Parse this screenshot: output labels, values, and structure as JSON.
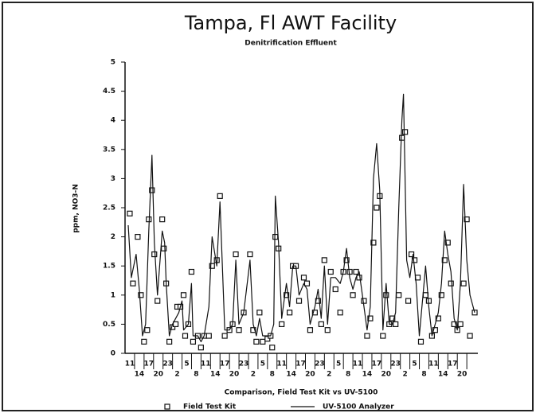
{
  "chart_data": {
    "type": "line",
    "title": "Tampa, Fl AWT Facility",
    "subtitle": "Denitrification Effluent",
    "ylabel": "ppm, NO3-N",
    "xlabel": "Comparison, Field Test Kit vs UV-5100",
    "ylim": [
      0,
      5
    ],
    "yticks": [
      0,
      0.5,
      1,
      1.5,
      2,
      2.5,
      3,
      3.5,
      4,
      4.5,
      5
    ],
    "xlim": [
      -4,
      442
    ],
    "xticks": [
      {
        "value": 2,
        "label": "11"
      },
      {
        "value": 14,
        "label": "14"
      },
      {
        "value": 26,
        "label": "17"
      },
      {
        "value": 38,
        "label": "20"
      },
      {
        "value": 50,
        "label": "23"
      },
      {
        "value": 62,
        "label": "2"
      },
      {
        "value": 74,
        "label": "5"
      },
      {
        "value": 86,
        "label": "8"
      },
      {
        "value": 98,
        "label": "11"
      },
      {
        "value": 110,
        "label": "14"
      },
      {
        "value": 122,
        "label": "17"
      },
      {
        "value": 134,
        "label": "20"
      },
      {
        "value": 146,
        "label": "23"
      },
      {
        "value": 158,
        "label": "2"
      },
      {
        "value": 170,
        "label": "5"
      },
      {
        "value": 182,
        "label": "8"
      },
      {
        "value": 194,
        "label": "11"
      },
      {
        "value": 206,
        "label": "14"
      },
      {
        "value": 218,
        "label": "17"
      },
      {
        "value": 230,
        "label": "20"
      },
      {
        "value": 242,
        "label": "23"
      },
      {
        "value": 254,
        "label": "2"
      },
      {
        "value": 266,
        "label": "5"
      },
      {
        "value": 278,
        "label": "8"
      },
      {
        "value": 290,
        "label": "11"
      },
      {
        "value": 302,
        "label": "14"
      },
      {
        "value": 314,
        "label": "17"
      },
      {
        "value": 326,
        "label": "20"
      },
      {
        "value": 338,
        "label": "23"
      },
      {
        "value": 350,
        "label": "2"
      },
      {
        "value": 362,
        "label": "5"
      },
      {
        "value": 374,
        "label": "8"
      },
      {
        "value": 386,
        "label": "11"
      },
      {
        "value": 398,
        "label": "14"
      },
      {
        "value": 410,
        "label": "17"
      },
      {
        "value": 422,
        "label": "20"
      }
    ],
    "series": [
      {
        "name": "Field Test Kit",
        "color": "#111111",
        "marker": "square",
        "line": false,
        "x": [
          2,
          6,
          12,
          16,
          20,
          24,
          26,
          30,
          33,
          37,
          43,
          45,
          48,
          52,
          56,
          60,
          62,
          66,
          70,
          72,
          76,
          80,
          82,
          88,
          92,
          96,
          102,
          106,
          112,
          116,
          122,
          128,
          132,
          136,
          140,
          146,
          154,
          158,
          162,
          166,
          170,
          176,
          180,
          182,
          186,
          190,
          194,
          200,
          204,
          208,
          212,
          216,
          222,
          226,
          230,
          236,
          240,
          244,
          248,
          252,
          256,
          262,
          268,
          272,
          276,
          280,
          284,
          288,
          292,
          298,
          302,
          306,
          310,
          314,
          318,
          322,
          326,
          330,
          334,
          338,
          342,
          346,
          350,
          354,
          358,
          362,
          366,
          370,
          376,
          380,
          384,
          388,
          392,
          396,
          400,
          404,
          408,
          412,
          416,
          420,
          424,
          428,
          432,
          438
        ],
        "values": [
          2.4,
          1.2,
          2.0,
          1.0,
          0.2,
          0.4,
          2.3,
          2.8,
          1.7,
          0.9,
          2.3,
          1.8,
          1.2,
          0.2,
          0.45,
          0.5,
          0.8,
          0.8,
          1.0,
          0.3,
          0.5,
          1.4,
          0.2,
          0.3,
          0.1,
          0.3,
          0.3,
          1.5,
          1.6,
          2.7,
          0.3,
          0.4,
          0.5,
          1.7,
          0.4,
          0.7,
          1.7,
          0.4,
          0.2,
          0.7,
          0.2,
          0.25,
          0.3,
          0.1,
          2.0,
          1.8,
          0.5,
          1.0,
          0.7,
          1.5,
          1.5,
          0.9,
          1.3,
          1.2,
          0.4,
          0.7,
          0.9,
          0.5,
          1.6,
          0.4,
          1.4,
          1.1,
          0.7,
          1.4,
          1.6,
          1.4,
          1.0,
          1.4,
          1.3,
          0.9,
          0.3,
          0.6,
          1.9,
          2.5,
          2.7,
          0.3,
          1.0,
          0.5,
          0.6,
          0.5,
          1.0,
          3.7,
          3.8,
          0.9,
          1.7,
          1.6,
          1.3,
          0.2,
          1.0,
          0.9,
          0.3,
          0.4,
          0.6,
          1.0,
          1.6,
          1.9,
          1.2,
          0.5,
          0.4,
          0.5,
          1.2,
          2.3,
          0.3,
          0.7
        ]
      },
      {
        "name": "UV-5100 Analyzer",
        "color": "#111111",
        "marker": "none",
        "line": true,
        "x": [
          0,
          4,
          10,
          14,
          18,
          22,
          26,
          30,
          33,
          37,
          43,
          46,
          48,
          52,
          56,
          60,
          64,
          68,
          70,
          76,
          80,
          82,
          88,
          92,
          96,
          102,
          106,
          112,
          116,
          122,
          128,
          132,
          136,
          140,
          146,
          154,
          158,
          162,
          166,
          170,
          176,
          180,
          184,
          186,
          190,
          194,
          200,
          204,
          208,
          212,
          216,
          222,
          226,
          230,
          236,
          240,
          244,
          248,
          252,
          256,
          262,
          268,
          272,
          276,
          280,
          284,
          288,
          292,
          298,
          302,
          306,
          310,
          314,
          318,
          322,
          326,
          330,
          334,
          338,
          342,
          346,
          348,
          352,
          356,
          360,
          364,
          368,
          376,
          380,
          384,
          388,
          392,
          396,
          400,
          404,
          408,
          412,
          416,
          420,
          424,
          428,
          432,
          438
        ],
        "values": [
          2.2,
          1.3,
          1.7,
          1.1,
          0.3,
          0.5,
          2.1,
          3.4,
          1.9,
          1.0,
          2.1,
          1.9,
          1.2,
          0.3,
          0.5,
          0.6,
          0.7,
          0.9,
          0.4,
          0.5,
          1.2,
          0.3,
          0.3,
          0.2,
          0.3,
          0.8,
          2.0,
          1.5,
          2.6,
          0.4,
          0.4,
          0.5,
          1.6,
          0.5,
          0.7,
          1.6,
          0.5,
          0.3,
          0.6,
          0.3,
          0.3,
          0.3,
          0.5,
          2.7,
          1.9,
          0.6,
          1.2,
          0.8,
          1.5,
          1.5,
          1.0,
          1.2,
          1.1,
          0.5,
          0.8,
          1.1,
          0.6,
          1.5,
          0.5,
          1.3,
          1.3,
          1.2,
          1.4,
          1.8,
          1.3,
          1.1,
          1.3,
          1.4,
          0.8,
          0.4,
          0.8,
          3.0,
          3.6,
          2.8,
          0.4,
          1.2,
          0.5,
          0.5,
          0.7,
          2.5,
          4.0,
          4.45,
          1.6,
          1.3,
          1.7,
          1.2,
          0.3,
          1.5,
          0.8,
          0.3,
          0.5,
          0.7,
          1.2,
          2.1,
          1.7,
          1.4,
          0.6,
          0.4,
          1.2,
          2.9,
          1.6,
          1.0,
          0.7
        ]
      }
    ]
  }
}
